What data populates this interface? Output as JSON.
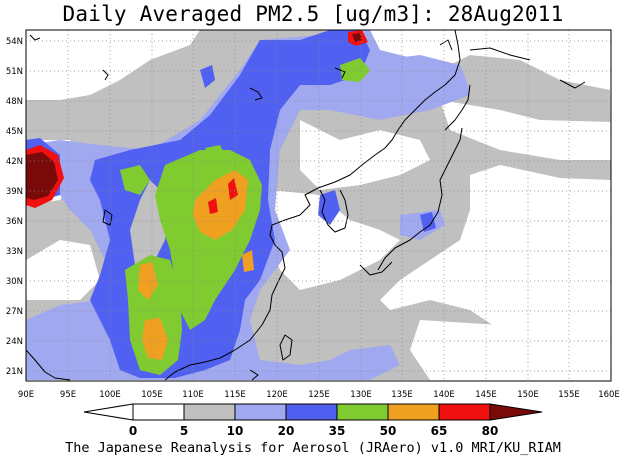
{
  "title": "Daily Averaged PM2.5 [ug/m3]: 28Aug2011",
  "footer": "The Japanese Reanalysis for Aerosol (JRAero) v1.0 MRI/KU_RIAM",
  "map": {
    "lon_labels": [
      "90E",
      "95E",
      "100E",
      "105E",
      "110E",
      "115E",
      "120E",
      "125E",
      "130E",
      "135E",
      "140E",
      "145E",
      "150E",
      "155E",
      "160E"
    ],
    "lat_labels": [
      "54N",
      "51N",
      "48N",
      "45N",
      "42N",
      "39N",
      "36N",
      "33N",
      "30N",
      "27N",
      "24N",
      "21N"
    ],
    "lon_range": [
      90,
      160
    ],
    "lat_range": [
      20,
      55
    ],
    "grid": "dotted"
  },
  "colorbar": {
    "tick_labels": [
      "0",
      "5",
      "10",
      "20",
      "35",
      "50",
      "65",
      "80"
    ],
    "colors": [
      "#ffffff",
      "#c0c0c0",
      "#a0a8f0",
      "#5060f0",
      "#80cc30",
      "#f0a020",
      "#f01010",
      "#7a0a0a"
    ]
  }
}
